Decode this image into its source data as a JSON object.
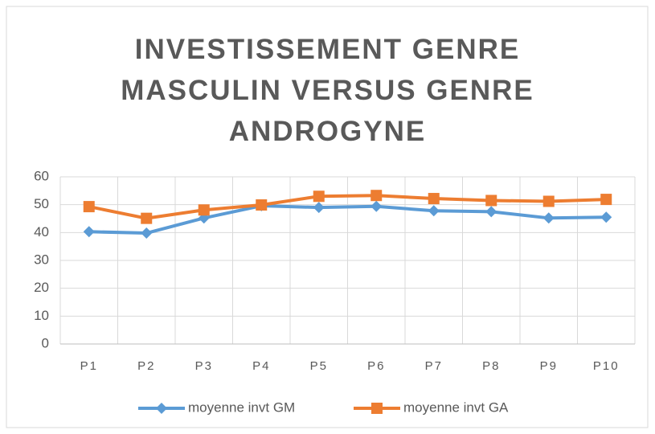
{
  "chart_data": {
    "type": "line",
    "title": "INVESTISSEMENT GENRE MASCULIN VERSUS GENRE ANDROGYNE",
    "categories": [
      "P1",
      "P2",
      "P3",
      "P4",
      "P5",
      "P6",
      "P7",
      "P8",
      "P9",
      "P10"
    ],
    "series": [
      {
        "name": "moyenne invt GM",
        "color": "#5b9bd5",
        "marker": "diamond",
        "values": [
          40.3,
          39.8,
          45.2,
          49.6,
          49.0,
          49.4,
          47.8,
          47.5,
          45.2,
          45.5
        ]
      },
      {
        "name": "moyenne invt GA",
        "color": "#ed7d31",
        "marker": "square",
        "values": [
          49.3,
          45.1,
          48.1,
          49.9,
          53.0,
          53.3,
          52.2,
          51.5,
          51.2,
          51.9
        ]
      }
    ],
    "ylim": [
      0,
      60
    ],
    "yticks": [
      0,
      10,
      20,
      30,
      40,
      50,
      60
    ],
    "grid": true,
    "legend": "bottom"
  }
}
